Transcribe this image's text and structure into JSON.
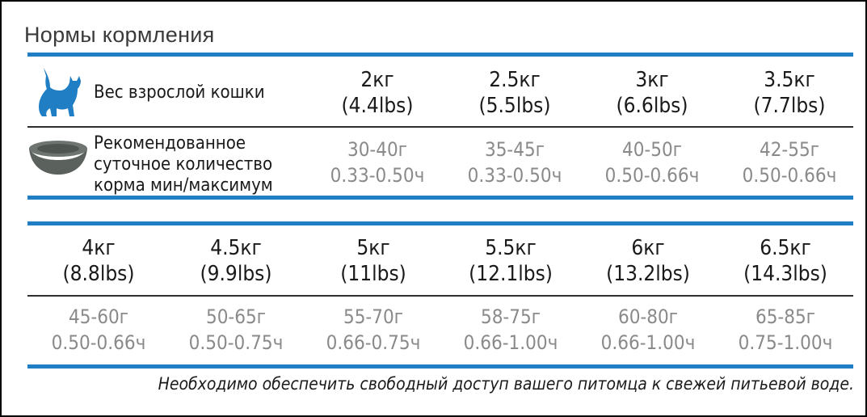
{
  "title": "Нормы кормления",
  "colors": {
    "accent": "#1f7ec4",
    "muted": "#8a8a8a",
    "text": "#1a1a1a"
  },
  "row1": {
    "weight_label": "Вес взрослой кошки",
    "amount_label": [
      "Рекомендованное",
      "суточное количество",
      "корма мин/максимум"
    ],
    "columns": [
      {
        "kg": "2кг",
        "lbs": "(4.4lbs)",
        "grams": "30-40г",
        "cups": "0.33-0.50ч"
      },
      {
        "kg": "2.5кг",
        "lbs": "(5.5lbs)",
        "grams": "35-45г",
        "cups": "0.33-0.50ч"
      },
      {
        "kg": "3кг",
        "lbs": "(6.6lbs)",
        "grams": "40-50г",
        "cups": "0.50-0.66ч"
      },
      {
        "kg": "3.5кг",
        "lbs": "(7.7lbs)",
        "grams": "42-55г",
        "cups": "0.50-0.66ч"
      }
    ]
  },
  "row2": {
    "columns": [
      {
        "kg": "4кг",
        "lbs": "(8.8lbs)",
        "grams": "45-60г",
        "cups": "0.50-0.66ч"
      },
      {
        "kg": "4.5кг",
        "lbs": "(9.9lbs)",
        "grams": "50-65г",
        "cups": "0.50-0.75ч"
      },
      {
        "kg": "5кг",
        "lbs": "(11lbs)",
        "grams": "55-70г",
        "cups": "0.66-0.75ч"
      },
      {
        "kg": "5.5кг",
        "lbs": "(12.1lbs)",
        "grams": "58-75г",
        "cups": "0.66-1.00ч"
      },
      {
        "kg": "6кг",
        "lbs": "(13.2lbs)",
        "grams": "60-80г",
        "cups": "0.66-1.00ч"
      },
      {
        "kg": "6.5кг",
        "lbs": "(14.3lbs)",
        "grams": "65-85г",
        "cups": "0.75-1.00ч"
      }
    ]
  },
  "footnote": "Необходимо обеспечить свободный доступ  вашего питомца к свежей питьевой воде.",
  "icons": {
    "cat": "cat-icon",
    "bowl": "bowl-icon"
  }
}
